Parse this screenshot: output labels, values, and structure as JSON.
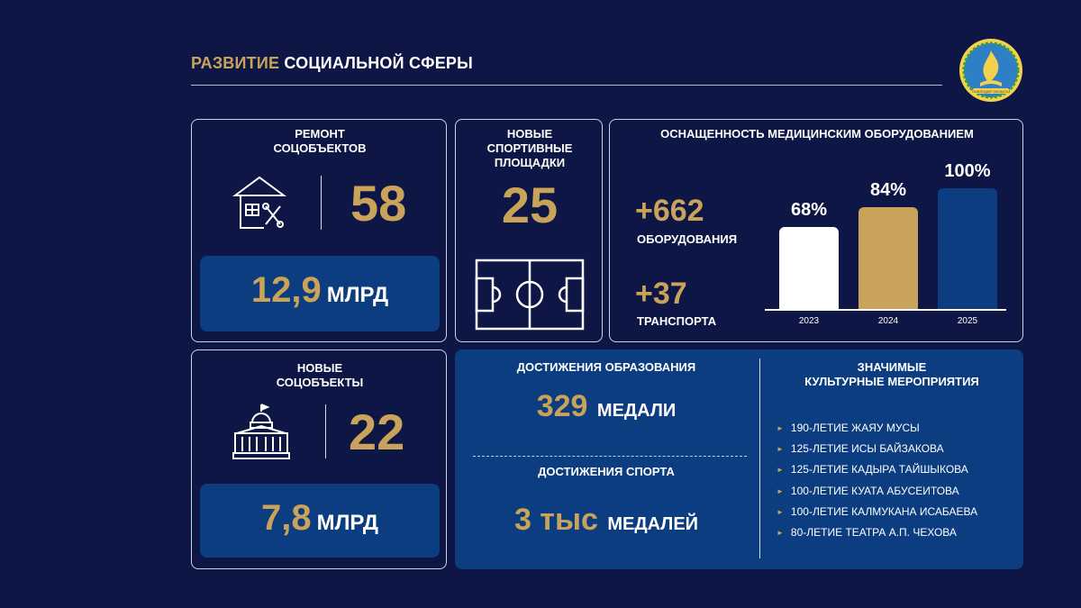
{
  "header": {
    "title_gold": "РАЗВИТИЕ",
    "title_white": "СОЦИАЛЬНОЙ СФЕРЫ",
    "emblem_icon": "regional-emblem-icon",
    "emblem_text": "ПАВЛОДАР ОБЛЫСЫ"
  },
  "repair": {
    "title_line1": "РЕМОНТ",
    "title_line2": "СОЦОБЪЕКТОВ",
    "icon": "house-repair-icon",
    "count": "58",
    "amount": "12,9",
    "amount_unit": "МЛРД"
  },
  "sports": {
    "title_line1": "НОВЫЕ",
    "title_line2": "СПОРТИВНЫЕ",
    "title_line3": "ПЛОЩАДКИ",
    "count": "25",
    "icon": "football-field-icon"
  },
  "medical": {
    "title": "ОСНАЩЕННОСТЬ МЕДИЦИНСКИМ ОБОРУДОВАНИЕМ",
    "equipment_count": "+662",
    "equipment_label": "ОБОРУДОВАНИЯ",
    "transport_count": "+37",
    "transport_label": "ТРАНСПОРТА"
  },
  "chart_data": {
    "type": "bar",
    "categories": [
      "2023",
      "2024",
      "2025"
    ],
    "values": [
      68,
      84,
      100
    ],
    "value_labels": [
      "68%",
      "84%",
      "100%"
    ],
    "colors": [
      "#ffffff",
      "#c9a35a",
      "#0b3d80"
    ],
    "ylim": [
      0,
      100
    ]
  },
  "new_objects": {
    "title_line1": "НОВЫЕ",
    "title_line2": "СОЦОБЪЕКТЫ",
    "icon": "government-building-icon",
    "count": "22",
    "amount": "7,8",
    "amount_unit": "МЛРД"
  },
  "achievements": {
    "education_title": "ДОСТИЖЕНИЯ ОБРАЗОВАНИЯ",
    "education_count": "329",
    "education_unit": "МЕДАЛИ",
    "sport_title": "ДОСТИЖЕНИЯ СПОРТА",
    "sport_count": "3 тыс",
    "sport_unit": "МЕДАЛЕЙ"
  },
  "culture": {
    "title_line1": "ЗНАЧИМЫЕ",
    "title_line2": "КУЛЬТУРНЫЕ МЕРОПРИЯТИЯ",
    "events": [
      "190-ЛЕТИЕ ЖАЯУ МУСЫ",
      "125-ЛЕТИЕ ИСЫ БАЙЗАКОВА",
      "125-ЛЕТИЕ КАДЫРА ТАЙШЫКОВА",
      "100-ЛЕТИЕ КУАТА АБУСЕИТОВА",
      "100-ЛЕТИЕ КАЛМУКАНА ИСАБАЕВА",
      "80-ЛЕТИЕ ТЕАТРА А.П. ЧЕХОВА"
    ]
  }
}
